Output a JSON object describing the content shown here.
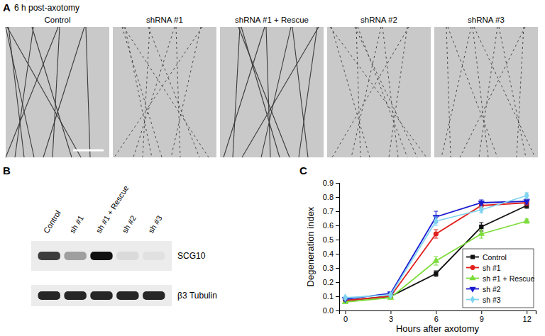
{
  "panel_a": {
    "label": "A",
    "title": "6 h post-axotomy",
    "columns": [
      "Control",
      "shRNA #1",
      "shRNA #1 + Rescue",
      "shRNA #2",
      "shRNA #3"
    ]
  },
  "panel_b": {
    "label": "B",
    "lanes": [
      "Control",
      "sh #1",
      "sh #1 + Rescue",
      "sh #2",
      "sh #3"
    ],
    "rows": [
      {
        "name": "SCG10",
        "intensity": [
          0.8,
          0.35,
          1.0,
          0.08,
          0.05
        ]
      },
      {
        "name": "β3 Tubulin",
        "intensity": [
          0.9,
          0.9,
          0.9,
          0.9,
          0.9
        ]
      }
    ]
  },
  "panel_c": {
    "label": "C"
  },
  "chart_data": {
    "type": "line",
    "x_label": "Hours after axotomy",
    "y_label": "Degeneration index",
    "x": [
      0,
      3,
      6,
      9,
      12
    ],
    "xlim": [
      -0.4,
      12.6
    ],
    "xticks": [
      0,
      3,
      6,
      9,
      12
    ],
    "ylim": [
      0,
      0.9
    ],
    "yticks": [
      {
        "value": 0,
        "label": "0.0"
      },
      0.1,
      0.2,
      0.3,
      0.4,
      0.5,
      0.6,
      0.7,
      0.8,
      0.9
    ],
    "legend": "lower right",
    "series": [
      {
        "name": "Control",
        "color": "#111111",
        "marker": "square",
        "values": [
          0.07,
          0.1,
          0.26,
          0.59,
          0.74
        ],
        "errors": [
          0.01,
          0.01,
          0.02,
          0.03,
          0.02
        ]
      },
      {
        "name": "sh #1",
        "color": "#e0201c",
        "marker": "circle",
        "values": [
          0.07,
          0.1,
          0.54,
          0.74,
          0.76
        ],
        "errors": [
          0.01,
          0.01,
          0.03,
          0.02,
          0.02
        ]
      },
      {
        "name": "sh #1 + Rescue",
        "color": "#7ddc3c",
        "marker": "triangle-up",
        "values": [
          0.06,
          0.09,
          0.35,
          0.54,
          0.63
        ],
        "errors": [
          0.01,
          0.01,
          0.03,
          0.03,
          0.015
        ]
      },
      {
        "name": "sh #2",
        "color": "#1a1ad0",
        "marker": "triangle-down",
        "values": [
          0.08,
          0.12,
          0.66,
          0.76,
          0.77
        ],
        "errors": [
          0.01,
          0.01,
          0.04,
          0.02,
          0.02
        ]
      },
      {
        "name": "sh #3",
        "color": "#80d4f0",
        "marker": "diamond",
        "values": [
          0.09,
          0.11,
          0.63,
          0.71,
          0.81
        ],
        "errors": [
          0.01,
          0.01,
          0.03,
          0.02,
          0.02
        ]
      }
    ]
  }
}
